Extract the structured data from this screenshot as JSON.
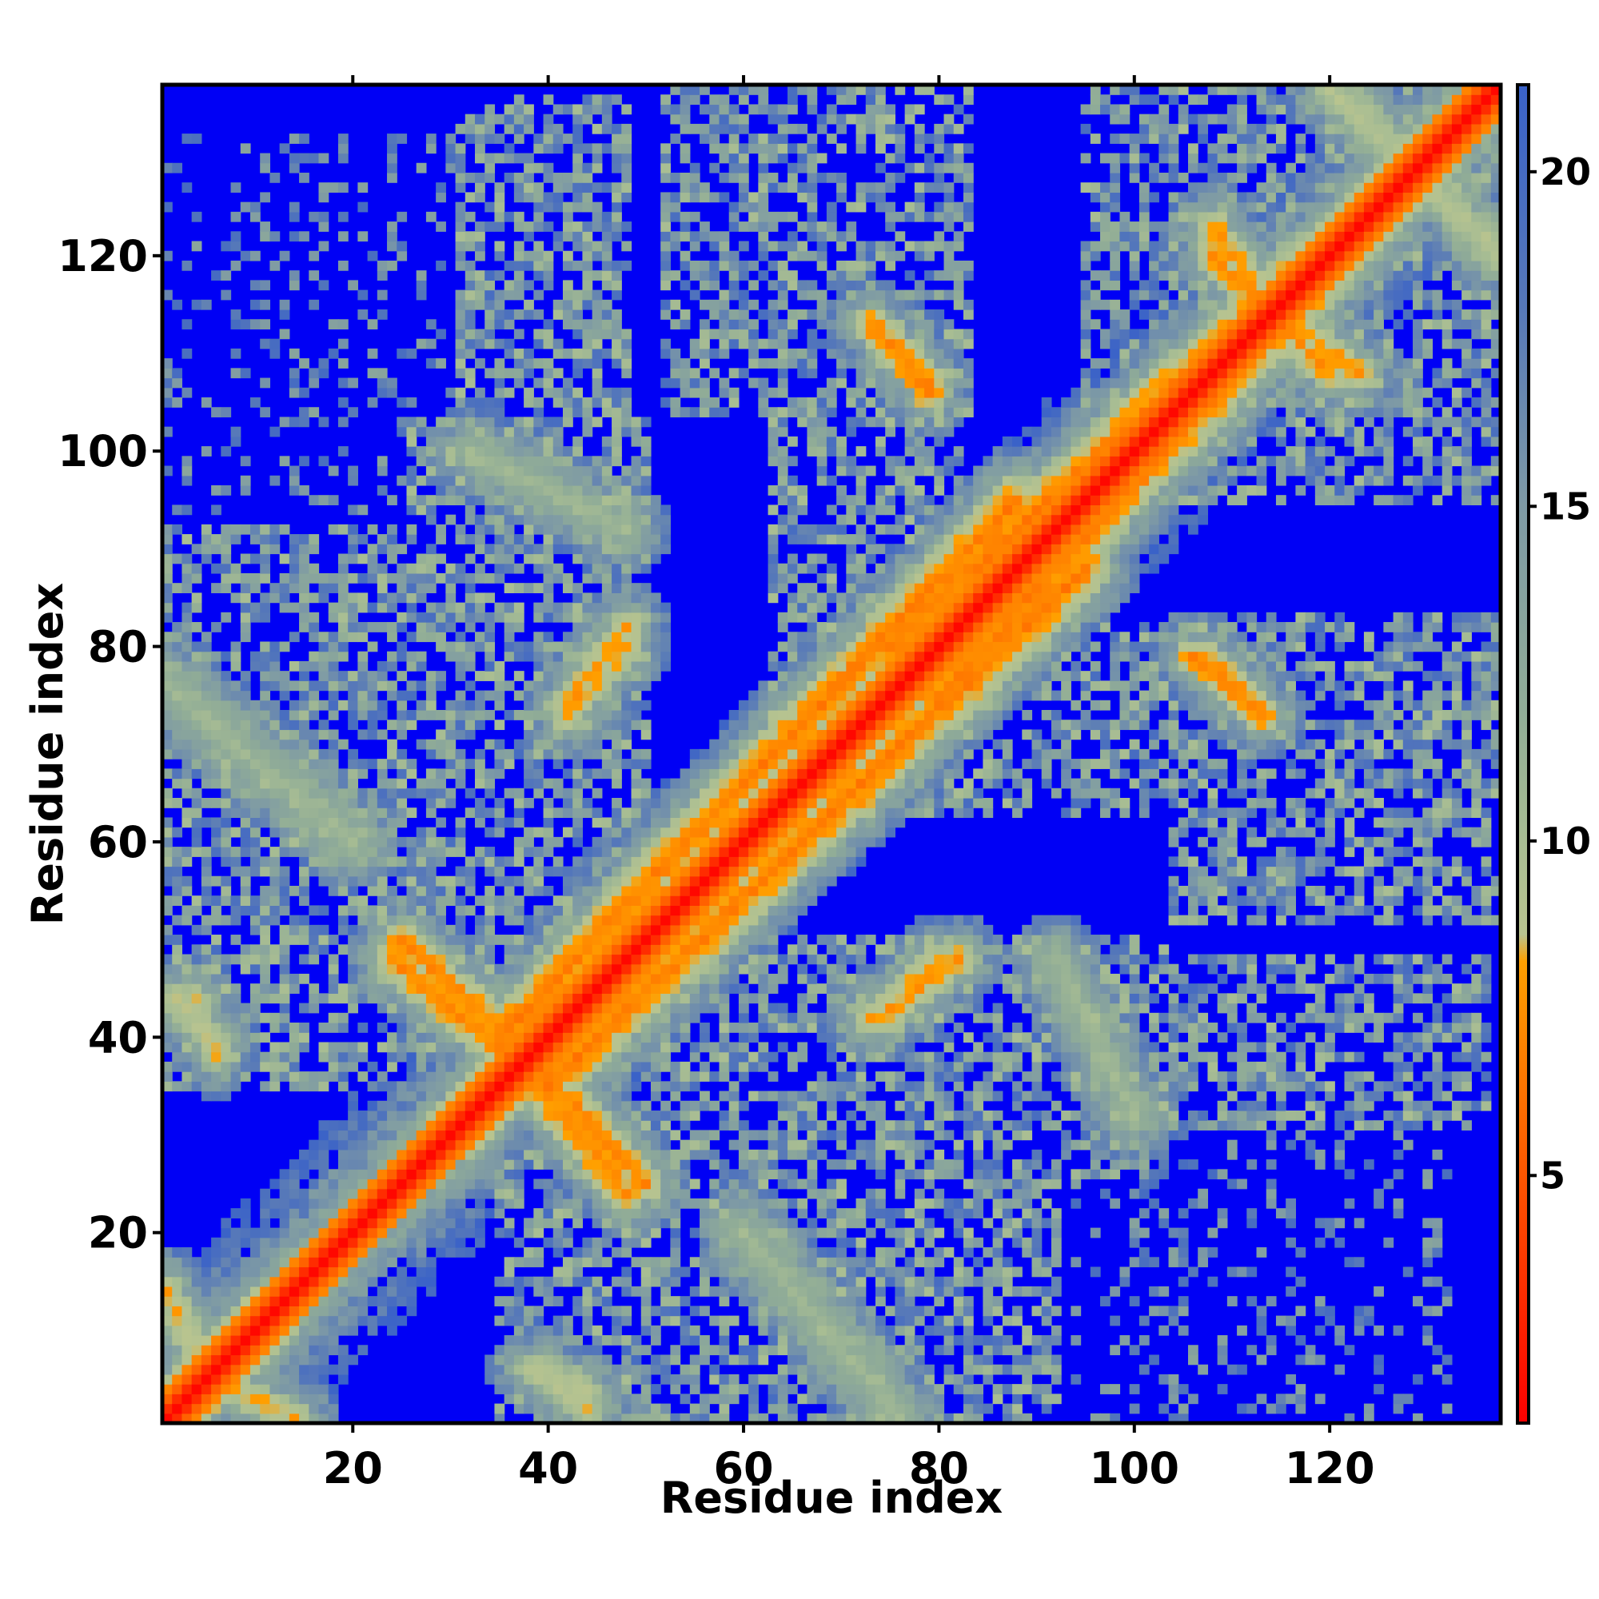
{
  "chart_data": {
    "type": "heatmap",
    "title": "",
    "xlabel": "Residue index",
    "ylabel": "Residue index",
    "xlim": [
      1,
      137
    ],
    "ylim": [
      1,
      137
    ],
    "x_ticks": [
      20,
      40,
      60,
      80,
      100,
      120
    ],
    "y_ticks": [
      20,
      40,
      60,
      80,
      100,
      120
    ],
    "colorbar": {
      "range": [
        1.3,
        21.3
      ],
      "ticks": [
        5,
        10,
        15,
        20
      ],
      "stops": [
        {
          "value": 1.3,
          "color": "#ff0000"
        },
        {
          "value": 4.5,
          "color": "#ff4a00"
        },
        {
          "value": 8.2,
          "color": "#ffa000"
        },
        {
          "value": 8.6,
          "color": "#b9c48f"
        },
        {
          "value": 10.0,
          "color": "#a8bd93"
        },
        {
          "value": 12.0,
          "color": "#90ac97"
        },
        {
          "value": 15.0,
          "color": "#7e9aa5"
        },
        {
          "value": 18.0,
          "color": "#5678b9"
        },
        {
          "value": 21.3,
          "color": "#3a62c8"
        }
      ]
    },
    "cap_color": "#0000f5",
    "cap_value": 21.3,
    "diagonal_width": 1.0,
    "contact_bands": [
      {
        "x": [
          4,
          38
        ],
        "y": [
          3,
          39
        ],
        "dist": 5.5,
        "width": 2.5
      },
      {
        "x": [
          35,
          88
        ],
        "y": [
          40,
          95
        ],
        "dist": 6,
        "width": 2.5
      },
      {
        "x": [
          75,
          137
        ],
        "y": [
          80,
          137
        ],
        "dist": 6,
        "width": 2.5
      },
      {
        "x": [
          25,
          36
        ],
        "y": [
          50,
          40
        ],
        "dist": 6.5,
        "width": 1.8
      },
      {
        "x": [
          38,
          48
        ],
        "y": [
          36,
          24
        ],
        "dist": 6.5,
        "width": 1.8
      },
      {
        "x": [
          42,
          48
        ],
        "y": [
          74,
          82
        ],
        "dist": 7,
        "width": 1.5
      },
      {
        "x": [
          64,
          72
        ],
        "y": [
          72,
          66
        ],
        "dist": 7,
        "width": 1.5
      },
      {
        "x": [
          73,
          79
        ],
        "y": [
          113,
          106
        ],
        "dist": 6.5,
        "width": 1.5
      },
      {
        "x": [
          107,
          113
        ],
        "y": [
          79,
          73
        ],
        "dist": 6.5,
        "width": 1.5
      },
      {
        "x": [
          108,
          116
        ],
        "y": [
          123,
          112
        ],
        "dist": 7,
        "width": 1.5
      },
      {
        "x": [
          114,
          120
        ],
        "y": [
          114,
          108
        ],
        "dist": 7,
        "width": 1.5
      },
      {
        "x": [
          83,
          90
        ],
        "y": [
          91,
          83
        ],
        "dist": 7.5,
        "width": 1.5
      },
      {
        "x": [
          73,
          80
        ],
        "y": [
          42,
          48
        ],
        "dist": 7.5,
        "width": 1.5
      },
      {
        "x": [
          1,
          6
        ],
        "y": [
          14,
          4
        ],
        "dist": 7.5,
        "width": 1.5
      },
      {
        "x": [
          2,
          6
        ],
        "y": [
          44,
          39
        ],
        "dist": 8,
        "width": 1.5
      },
      {
        "x": [
          38,
          44
        ],
        "y": [
          6,
          4
        ],
        "dist": 8,
        "width": 1.2
      },
      {
        "x": [
          32,
          48
        ],
        "y": [
          100,
          92
        ],
        "dist": 10,
        "width": 1.5
      },
      {
        "x": [
          1,
          20
        ],
        "y": [
          76,
          60
        ],
        "dist": 10,
        "width": 2.0
      },
      {
        "x": [
          120,
          136
        ],
        "y": [
          137,
          122
        ],
        "dist": 8.5,
        "width": 1.5
      }
    ],
    "structured_regions": [
      {
        "x": [
          1,
          135
        ],
        "y": [
          1,
          135
        ],
        "kind": "near-diagonal",
        "reach": 14
      },
      {
        "x": [
          1,
          28
        ],
        "y": [
          35,
          82
        ],
        "kind": "patch"
      },
      {
        "x": [
          26,
          50
        ],
        "y": [
          48,
          103
        ],
        "kind": "patch"
      },
      {
        "x": [
          42,
          92
        ],
        "y": [
          1,
          36
        ],
        "kind": "patch"
      },
      {
        "x": [
          63,
          82
        ],
        "y": [
          72,
          125
        ],
        "kind": "patch"
      },
      {
        "x": [
          86,
          134
        ],
        "y": [
          31,
          48
        ],
        "kind": "patch"
      },
      {
        "x": [
          104,
          137
        ],
        "y": [
          52,
          83
        ],
        "kind": "patch"
      },
      {
        "x": [
          95,
          137
        ],
        "y": [
          95,
          137
        ],
        "kind": "patch"
      },
      {
        "x": [
          33,
          48
        ],
        "y": [
          108,
          136
        ],
        "kind": "patch"
      },
      {
        "x": [
          94,
          130
        ],
        "y": [
          1,
          30
        ],
        "kind": "sparse"
      },
      {
        "x": [
          1,
          30
        ],
        "y": [
          100,
          132
        ],
        "kind": "sparse"
      }
    ]
  }
}
